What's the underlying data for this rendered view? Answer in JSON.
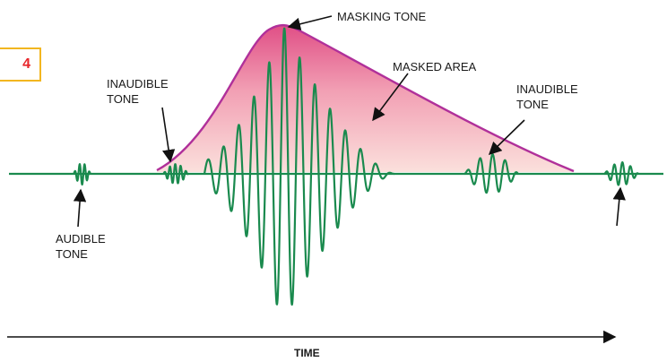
{
  "figure": {
    "number": "4"
  },
  "labels": {
    "masking_tone": "MASKING TONE",
    "masked_area": "MASKED AREA",
    "inaudible_tone_left": "INAUDIBLE\nTONE",
    "inaudible_tone_right": "INAUDIBLE\nTONE",
    "audible_tone": "AUDIBLE\nTONE",
    "time_axis": "TIME"
  },
  "colors": {
    "waveform": "#1a8a4e",
    "envelope": "#b0309a",
    "masked_fill_top": "#e04f86",
    "masked_fill_bottom": "#fbe0dc",
    "figure_border": "#f2b620",
    "figure_number": "#e8262b"
  }
}
